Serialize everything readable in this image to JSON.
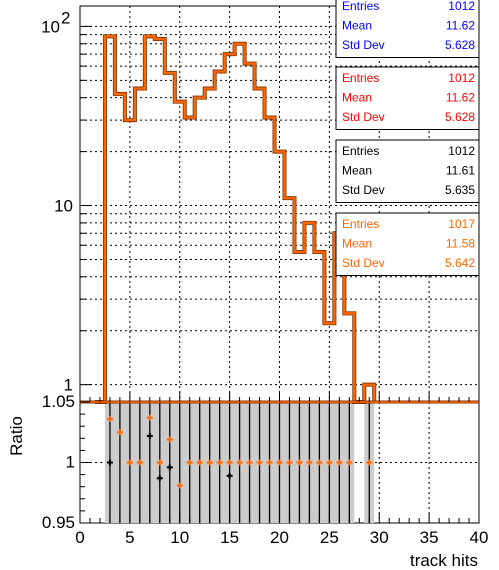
{
  "chart_data": [
    {
      "type": "line",
      "subtype": "step-histogram",
      "title": "",
      "xlabel": "track hits",
      "ylabel": "",
      "xlim": [
        0,
        40
      ],
      "ylim": [
        0.8,
        130
      ],
      "yscale": "log",
      "y_ticks": [
        {
          "v": 1,
          "label": "1"
        },
        {
          "v": 10,
          "label": "10"
        },
        {
          "v": 100,
          "label": "10",
          "exp": "2"
        }
      ],
      "x_ticks": [
        "0",
        "5",
        "10",
        "15",
        "20",
        "25",
        "30",
        "35",
        "40"
      ],
      "grid": true,
      "bin_width": 1,
      "series": [
        {
          "color": "#ff6600",
          "bins": [
            {
              "x": 2,
              "y": 0
            },
            {
              "x": 3,
              "y": 88
            },
            {
              "x": 4,
              "y": 42
            },
            {
              "x": 5,
              "y": 30
            },
            {
              "x": 6,
              "y": 45
            },
            {
              "x": 7,
              "y": 88
            },
            {
              "x": 8,
              "y": 85
            },
            {
              "x": 9,
              "y": 55
            },
            {
              "x": 10,
              "y": 38
            },
            {
              "x": 11,
              "y": 31
            },
            {
              "x": 12,
              "y": 40
            },
            {
              "x": 13,
              "y": 45
            },
            {
              "x": 14,
              "y": 56
            },
            {
              "x": 15,
              "y": 70
            },
            {
              "x": 16,
              "y": 80
            },
            {
              "x": 17,
              "y": 62
            },
            {
              "x": 18,
              "y": 45
            },
            {
              "x": 19,
              "y": 31
            },
            {
              "x": 20,
              "y": 20
            },
            {
              "x": 21,
              "y": 11
            },
            {
              "x": 22,
              "y": 5.5
            },
            {
              "x": 23,
              "y": 8
            },
            {
              "x": 24,
              "y": 5.5
            },
            {
              "x": 25,
              "y": 2.2
            },
            {
              "x": 26,
              "y": 7
            },
            {
              "x": 27,
              "y": 2.5
            },
            {
              "x": 28,
              "y": 0.7
            },
            {
              "x": 29,
              "y": 1
            }
          ]
        }
      ],
      "stats_boxes": [
        {
          "color": "#0000ff",
          "entries_label": "Entries",
          "entries": "1012",
          "mean_label": "Mean",
          "mean": "11.62",
          "std_label": "Std Dev",
          "std": "5.628"
        },
        {
          "color": "#ff0000",
          "entries_label": "Entries",
          "entries": "1012",
          "mean_label": "Mean",
          "mean": "11.62",
          "std_label": "Std Dev",
          "std": "5.628"
        },
        {
          "color": "#000000",
          "entries_label": "Entries",
          "entries": "1012",
          "mean_label": "Mean",
          "mean": "11.61",
          "std_label": "Std Dev",
          "std": "5.635"
        },
        {
          "color": "#ff6600",
          "entries_label": "Entries",
          "entries": "1017",
          "mean_label": "Mean",
          "mean": "11.58",
          "std_label": "Std Dev",
          "std": "5.642"
        }
      ]
    },
    {
      "type": "scatter",
      "subtype": "ratio-panel",
      "title": "",
      "xlabel": "track hits",
      "ylabel": "Ratio",
      "xlim": [
        0,
        40
      ],
      "ylim": [
        0.95,
        1.05
      ],
      "y_ticks": [
        {
          "v": 0.95,
          "label": "0.95"
        },
        {
          "v": 1,
          "label": "1"
        },
        {
          "v": 1.05,
          "label": "1.05"
        }
      ],
      "x_ticks": [
        "0",
        "5",
        "10",
        "15",
        "20",
        "25",
        "30",
        "35",
        "40"
      ],
      "grid": true,
      "error_band": {
        "x_from": 2.5,
        "x_to": 29.5,
        "color": "#cccccc",
        "gap_x_from": 27.5,
        "gap_x_to": 28.5
      },
      "series": [
        {
          "color": "#ff6600",
          "points": [
            {
              "x": 3,
              "y": 1.036
            },
            {
              "x": 4,
              "y": 1.025
            },
            {
              "x": 5,
              "y": 1
            },
            {
              "x": 6,
              "y": 1
            },
            {
              "x": 7,
              "y": 1.037
            },
            {
              "x": 8,
              "y": 1
            },
            {
              "x": 9,
              "y": 1.019
            },
            {
              "x": 10,
              "y": 0.981
            },
            {
              "x": 11,
              "y": 1
            },
            {
              "x": 12,
              "y": 1
            },
            {
              "x": 13,
              "y": 1
            },
            {
              "x": 14,
              "y": 1
            },
            {
              "x": 15,
              "y": 1
            },
            {
              "x": 16,
              "y": 1
            },
            {
              "x": 17,
              "y": 1
            },
            {
              "x": 18,
              "y": 1
            },
            {
              "x": 19,
              "y": 1
            },
            {
              "x": 20,
              "y": 1
            },
            {
              "x": 21,
              "y": 1
            },
            {
              "x": 22,
              "y": 1
            },
            {
              "x": 23,
              "y": 1
            },
            {
              "x": 24,
              "y": 1
            },
            {
              "x": 25,
              "y": 1
            },
            {
              "x": 26,
              "y": 1
            },
            {
              "x": 27,
              "y": 1
            },
            {
              "x": 29,
              "y": 1
            }
          ]
        },
        {
          "color": "#000000",
          "points": [
            {
              "x": 3,
              "y": 1
            },
            {
              "x": 7,
              "y": 1.022
            },
            {
              "x": 8,
              "y": 0.987
            },
            {
              "x": 9,
              "y": 0.996
            },
            {
              "x": 15,
              "y": 0.989
            }
          ]
        }
      ]
    }
  ]
}
